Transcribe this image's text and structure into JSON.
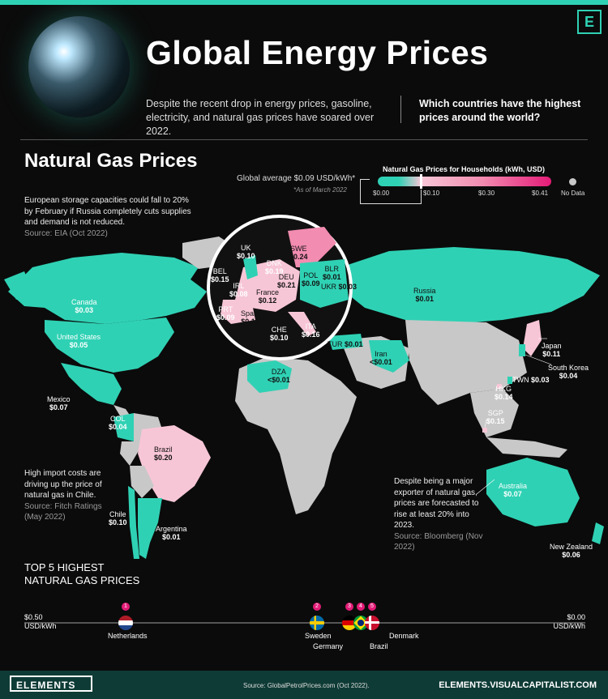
{
  "header": {
    "title": "Global Energy Prices",
    "intro": "Despite the recent drop in energy prices, gasoline, electricity, and natural gas prices have soared over 2022.",
    "question": "Which countries have the highest prices around the world?",
    "logo_letter": "E"
  },
  "section": {
    "title": "Natural Gas Prices"
  },
  "notes": {
    "europe": {
      "text": "European storage capacities could fall to 20% by February if Russia completely cuts supplies and demand is not reduced.",
      "source": "Source: EIA (Oct 2022)"
    },
    "chile": {
      "text": "High import costs are driving up the price of natural gas in Chile.",
      "source": "Source: Fitch Ratings (May 2022)"
    },
    "australia": {
      "text": "Despite being a major exporter of natural gas, prices are forecasted to rise at least 20% into 2023.",
      "source": "Source: Bloomberg (Nov 2022)"
    }
  },
  "legend": {
    "title": "Natural Gas Prices for Households (kWh, USD)",
    "ticks": [
      "$0.00",
      "$0.10",
      "$0.30",
      "$0.41"
    ],
    "no_data": "No Data",
    "global_average": "Global average $0.09 USD/kWh*",
    "asof": "*As of March 2022",
    "colors": {
      "low": "#2fd1b4",
      "mid": "#f7c6d6",
      "high": "#e31b77",
      "nodata": "#c8c8c8"
    }
  },
  "countries": {
    "canada": {
      "name": "Canada",
      "value": "$0.03"
    },
    "us": {
      "name": "United States",
      "value": "$0.05"
    },
    "mexico": {
      "name": "Mexico",
      "value": "$0.07"
    },
    "col": {
      "name": "COL",
      "value": "$0.04"
    },
    "brazil": {
      "name": "Brazil",
      "value": "$0.20"
    },
    "chile": {
      "name": "Chile",
      "value": "$0.10"
    },
    "argentina": {
      "name": "Argentina",
      "value": "$0.01"
    },
    "russia": {
      "name": "Russia",
      "value": "$0.01"
    },
    "japan": {
      "name": "Japan",
      "value": "$0.11"
    },
    "skorea": {
      "name": "South Korea",
      "value": "$0.04"
    },
    "twn": {
      "name": "TWN",
      "value": "$0.03"
    },
    "hkg": {
      "name": "HKG",
      "value": "$0.14"
    },
    "sgp": {
      "name": "SGP",
      "value": "$0.15"
    },
    "australia": {
      "name": "Australia",
      "value": "$0.07"
    },
    "nz": {
      "name": "New Zealand",
      "value": "$0.06"
    },
    "iran": {
      "name": "Iran",
      "value": "<$0.01"
    },
    "tur": {
      "name": "TUR",
      "value": "$0.01"
    },
    "dza": {
      "name": "DZA",
      "value": "<$0.01"
    },
    "uk": {
      "name": "UK",
      "value": "$0.10"
    },
    "bel": {
      "name": "BEL",
      "value": "$0.15"
    },
    "irl": {
      "name": "IRL",
      "value": "$0.08"
    },
    "prt": {
      "name": "PRT",
      "value": "$0.09"
    },
    "spain": {
      "name": "Spain",
      "value": "$0.17"
    },
    "france": {
      "name": "France",
      "value": "$0.12"
    },
    "che": {
      "name": "CHE",
      "value": "$0.10"
    },
    "ita": {
      "name": "ITA",
      "value": "$0.16"
    },
    "deu": {
      "name": "DEU",
      "value": "$0.21"
    },
    "dnk": {
      "name": "DNK",
      "value": "$0.19"
    },
    "swe": {
      "name": "SWE",
      "value": "$0.24"
    },
    "pol": {
      "name": "POL",
      "value": "$0.09"
    },
    "blr": {
      "name": "BLR",
      "value": "$0.01"
    },
    "ukr": {
      "name": "UKR",
      "value": "$0.03"
    }
  },
  "top5": {
    "title_line1": "TOP 5 HIGHEST",
    "title_line2": "NATURAL GAS PRICES",
    "scale_left": [
      "$0.50",
      "USD/kWh"
    ],
    "scale_right": [
      "$0.00",
      "USD/kWh"
    ],
    "items": [
      {
        "rank": "1",
        "name": "Netherlands"
      },
      {
        "rank": "2",
        "name": "Sweden"
      },
      {
        "rank": "3",
        "name": "Germany"
      },
      {
        "rank": "4",
        "name": "Brazil"
      },
      {
        "rank": "5",
        "name": "Denmark"
      }
    ]
  },
  "footer": {
    "logo": "ELEMENTS",
    "source": "Source: GlobalPetrolPrices.com (Oct 2022).",
    "url": "ELEMENTS.VISUALCAPITALIST.COM"
  }
}
